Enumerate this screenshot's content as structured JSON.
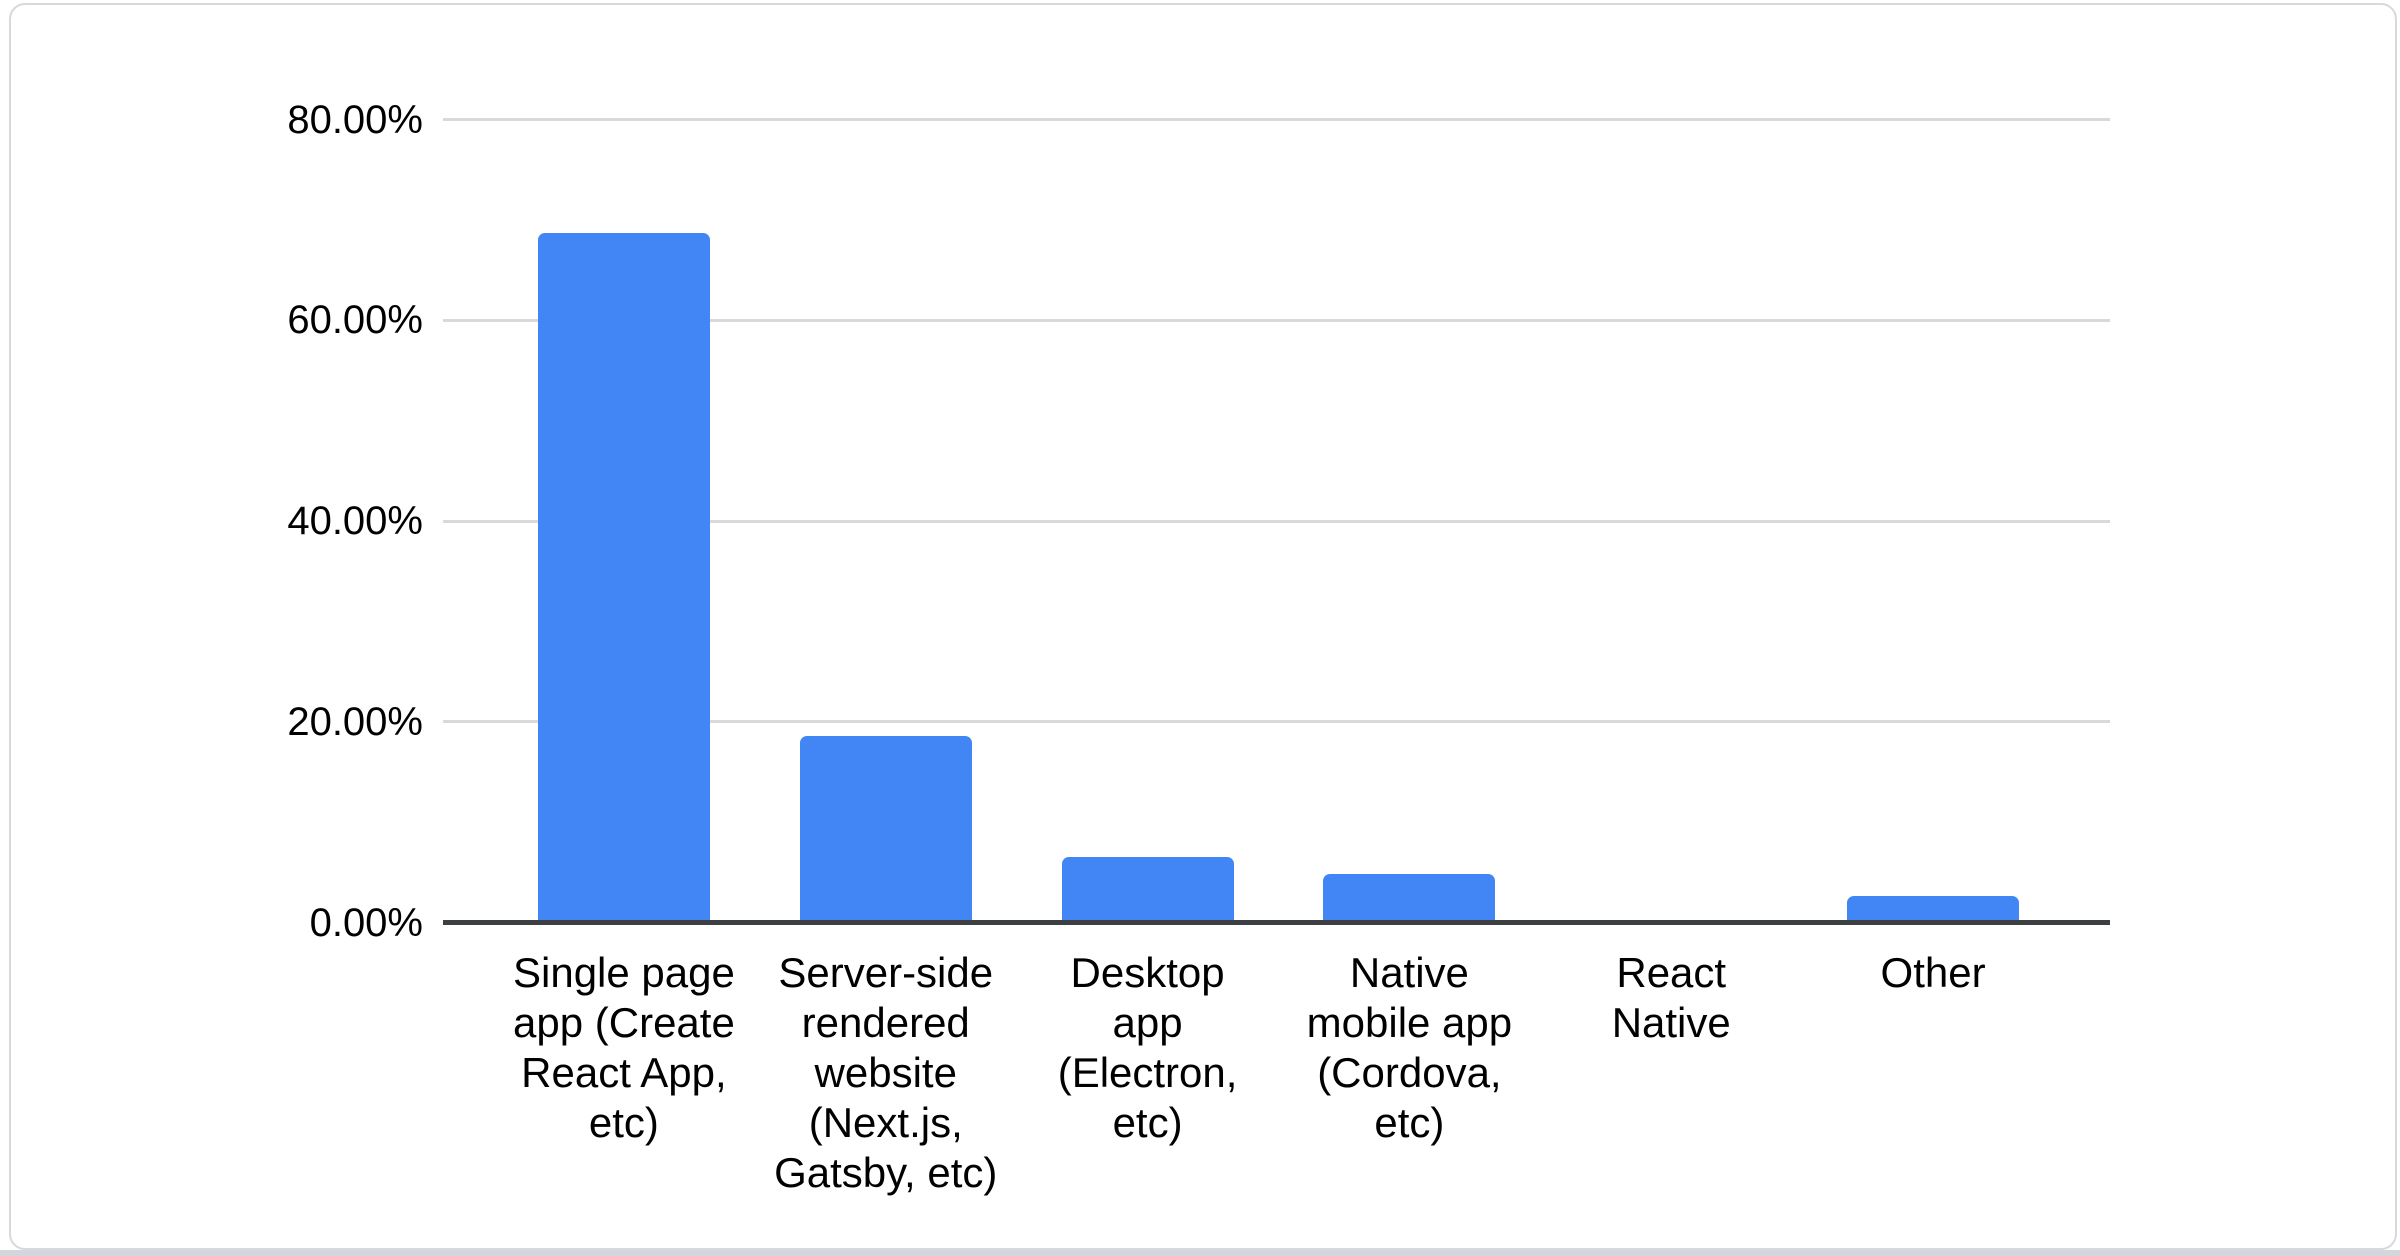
{
  "page": {
    "background_color": "#ffffff",
    "card_background": "#ffffff",
    "card_border_color": "#d6d9dd",
    "bottom_strip_color": "#d3d6da"
  },
  "style": {
    "bar_color": "#4285f4",
    "gridline_color": "#d9d9d9",
    "axis_line_color": "#3c4043",
    "text_color": "#000000"
  },
  "chart_data": {
    "type": "bar",
    "title": "",
    "xlabel": "",
    "ylabel": "",
    "categories": [
      "Single page app (Create React App, etc)",
      "Server-side rendered website (Next.js, Gatsby, etc)",
      "Desktop app (Electron, etc)",
      "Native mobile app (Cordova, etc)",
      "React Native",
      "Other"
    ],
    "categories_wrapped": [
      "Single page\napp (Create\nReact App,\netc)",
      "Server-side\nrendered\nwebsite\n(Next.js,\nGatsby, etc)",
      "Desktop\napp\n(Electron,\netc)",
      "Native\nmobile app\n(Cordova,\netc)",
      "React\nNative",
      "Other"
    ],
    "values": [
      68.4,
      18.3,
      6.3,
      4.6,
      0,
      2.4
    ],
    "value_unit": "%",
    "ylim": [
      0,
      80
    ],
    "yticks": [
      {
        "label": "80.00%",
        "value": 80
      },
      {
        "label": "60.00%",
        "value": 60
      },
      {
        "label": "40.00%",
        "value": 40
      },
      {
        "label": "20.00%",
        "value": 20
      },
      {
        "label": "0.00%",
        "value": 0
      }
    ],
    "grid": true,
    "legend_position": "none"
  }
}
